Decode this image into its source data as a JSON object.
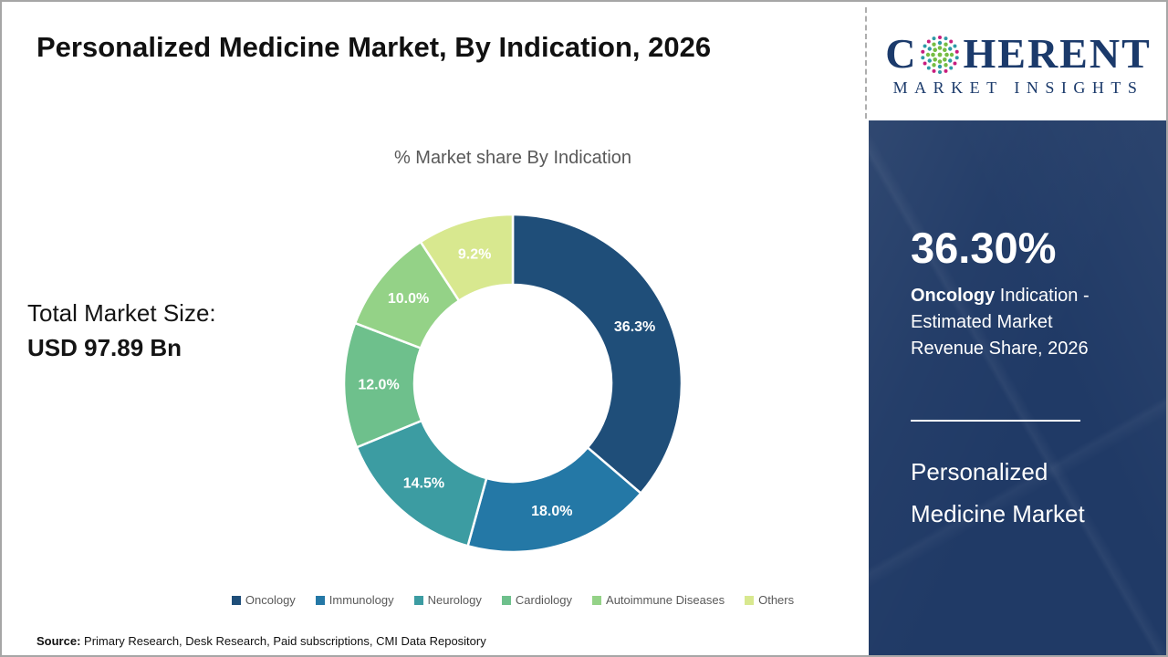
{
  "page": {
    "title": "Personalized Medicine Market, By Indication, 2026",
    "total_market_label": "Total Market Size:",
    "total_market_value": "USD 97.89 Bn",
    "source_label": "Source:",
    "source_text": " Primary Research, Desk Research, Paid subscriptions, CMI Data Repository"
  },
  "chart_data": {
    "type": "pie",
    "subtype": "donut",
    "title": "% Market share By Indication",
    "categories": [
      "Oncology",
      "Immunology",
      "Neurology",
      "Cardiology",
      "Autoimmune Diseases",
      "Others"
    ],
    "values": [
      36.3,
      18.0,
      14.5,
      12.0,
      10.0,
      9.2
    ],
    "data_labels": [
      "36.3%",
      "18.0%",
      "14.5%",
      "12.0%",
      "10.0%",
      "9.2%"
    ],
    "colors": [
      "#1F4E79",
      "#2478A6",
      "#3C9CA2",
      "#6EC08C",
      "#94D287",
      "#D8E88F"
    ],
    "start_angle_deg": 0,
    "direction": "clockwise",
    "legend_position": "bottom",
    "label_color": "#ffffff"
  },
  "sidebar": {
    "panel_color": "#203A66",
    "logo": {
      "text_color": "#1B3A6B",
      "part1": "C",
      "part2": "HERENT",
      "subtitle": "MARKET INSIGHTS",
      "globe_icon_colors": {
        "green": "#76BD43",
        "teal": "#2E9AA6",
        "magenta": "#C81E7E"
      }
    },
    "highlight_value": "36.30%",
    "highlight_bold": "Oncology",
    "highlight_rest": " Indication - Estimated Market Revenue Share, 2026",
    "market_name": "Personalized Medicine Market"
  }
}
